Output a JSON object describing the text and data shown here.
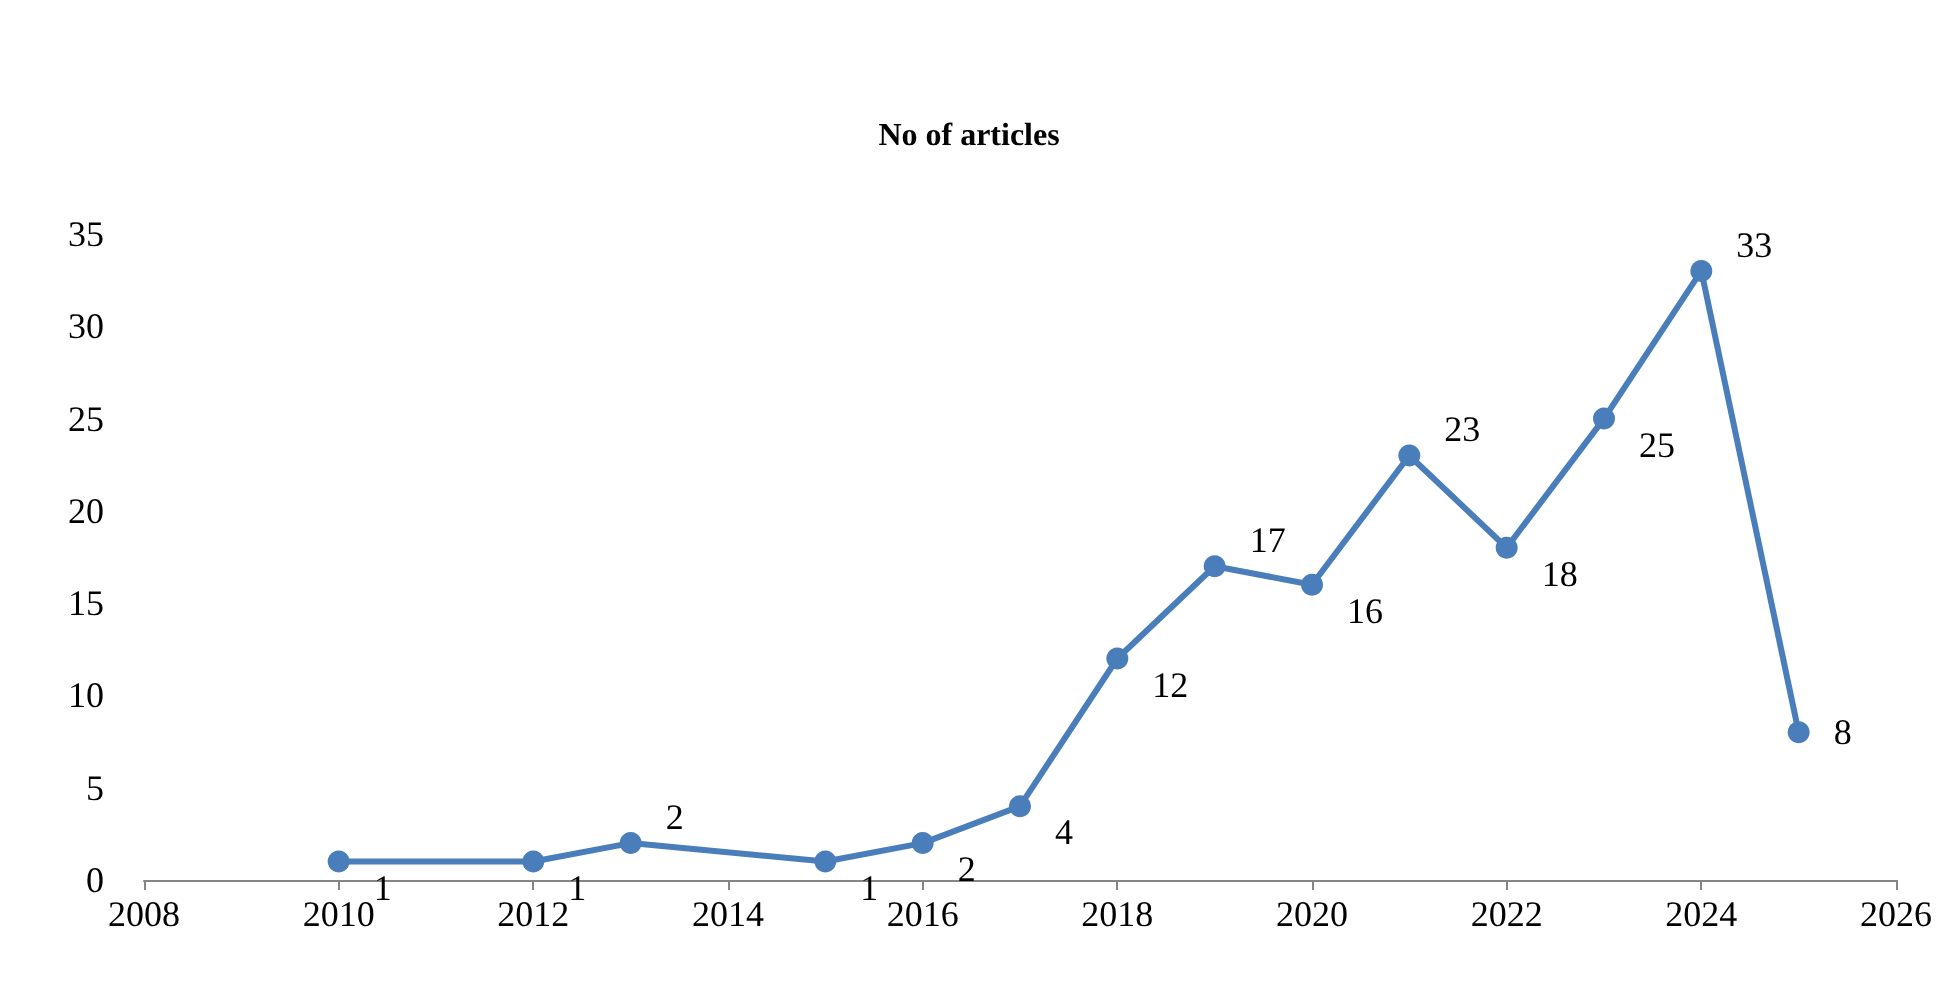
{
  "chart_data": {
    "type": "line",
    "title": "No of articles",
    "x": [
      2010,
      2012,
      2013,
      2015,
      2016,
      2017,
      2018,
      2019,
      2020,
      2021,
      2022,
      2023,
      2024,
      2025
    ],
    "series": [
      {
        "color": "#4a7ebb",
        "values": [
          1,
          1,
          2,
          1,
          2,
          4,
          12,
          17,
          16,
          23,
          18,
          25,
          33,
          8
        ]
      }
    ],
    "xlim": [
      2008,
      2026
    ],
    "xticks": [
      2008,
      2010,
      2012,
      2014,
      2016,
      2018,
      2020,
      2022,
      2024,
      2026
    ],
    "ylim": [
      0,
      35
    ],
    "yticks": [
      0,
      5,
      10,
      15,
      20,
      25,
      30,
      35
    ],
    "grid": false,
    "marker": "circle",
    "line_style": "solid",
    "data_labels": true
  }
}
